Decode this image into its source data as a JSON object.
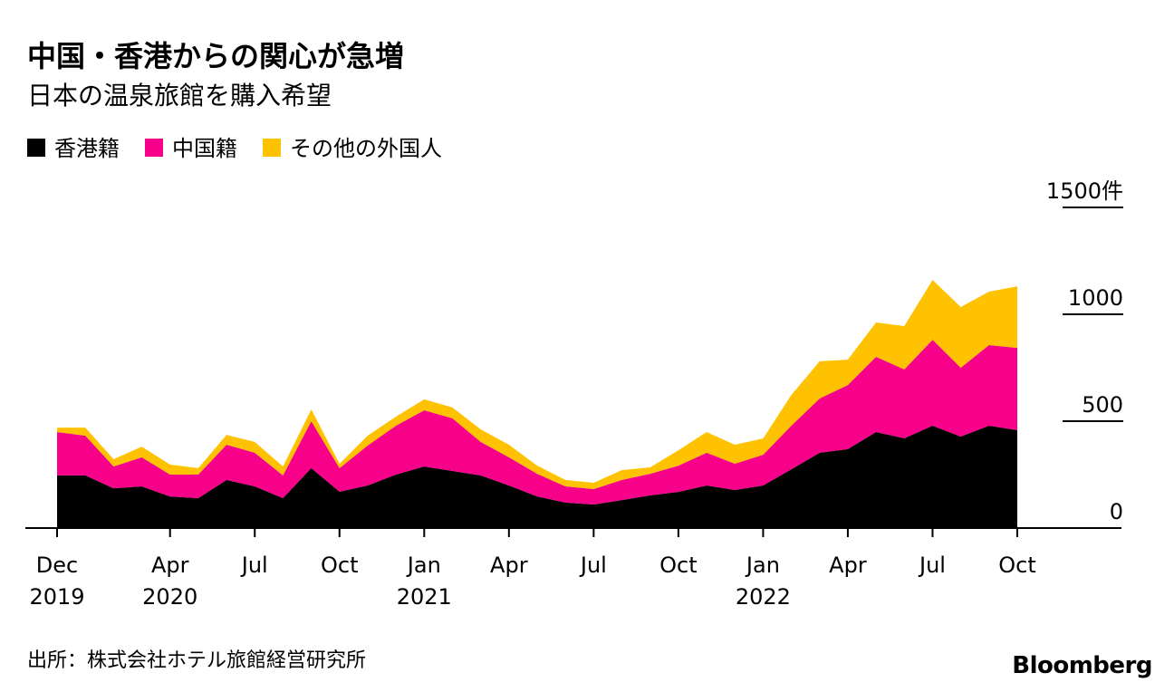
{
  "chart_data": {
    "type": "stacked_area",
    "title": "中国・香港からの関心が急増",
    "subtitle": "日本の温泉旅館を購入希望",
    "source": "出所：株式会社ホテル旅館経営研究所",
    "credit": "Bloomberg",
    "categories": [
      "Dec\n2019",
      null,
      null,
      null,
      "Apr\n2020",
      null,
      null,
      "Jul",
      null,
      null,
      "Oct",
      null,
      null,
      "Jan\n2021",
      null,
      null,
      "Apr",
      null,
      null,
      "Jul",
      null,
      null,
      "Oct",
      null,
      null,
      "Jan\n2022",
      null,
      null,
      "Apr",
      null,
      null,
      "Jul",
      null,
      null,
      "Oct"
    ],
    "series": [
      {
        "name": "香港籍",
        "color": "#000000",
        "values": [
          246,
          246,
          186,
          195,
          148,
          140,
          225,
          195,
          140,
          280,
          170,
          199,
          250,
          288,
          267,
          246,
          199,
          148,
          119,
          110,
          131,
          153,
          169,
          199,
          178,
          199,
          275,
          352,
          369,
          449,
          420,
          479,
          428,
          479,
          458
        ]
      },
      {
        "name": "中国籍",
        "color": "#f7008a",
        "values": [
          203,
          186,
          102,
          136,
          102,
          110,
          165,
          157,
          106,
          220,
          110,
          187,
          229,
          263,
          246,
          157,
          132,
          106,
          76,
          72,
          94,
          101,
          123,
          153,
          123,
          144,
          204,
          254,
          300,
          352,
          322,
          402,
          322,
          377,
          385
        ]
      },
      {
        "name": "その他の外国人",
        "color": "#ffc200",
        "values": [
          21,
          38,
          34,
          50,
          47,
          30,
          46,
          51,
          42,
          55,
          21,
          46,
          42,
          51,
          51,
          59,
          59,
          38,
          30,
          30,
          46,
          30,
          72,
          97,
          89,
          76,
          144,
          174,
          119,
          161,
          203,
          280,
          284,
          250,
          288
        ]
      }
    ],
    "ylim": [
      0,
      1500
    ],
    "yticks": [
      0,
      500,
      1000,
      {
        "value": 1500,
        "label": "1500件"
      }
    ]
  }
}
